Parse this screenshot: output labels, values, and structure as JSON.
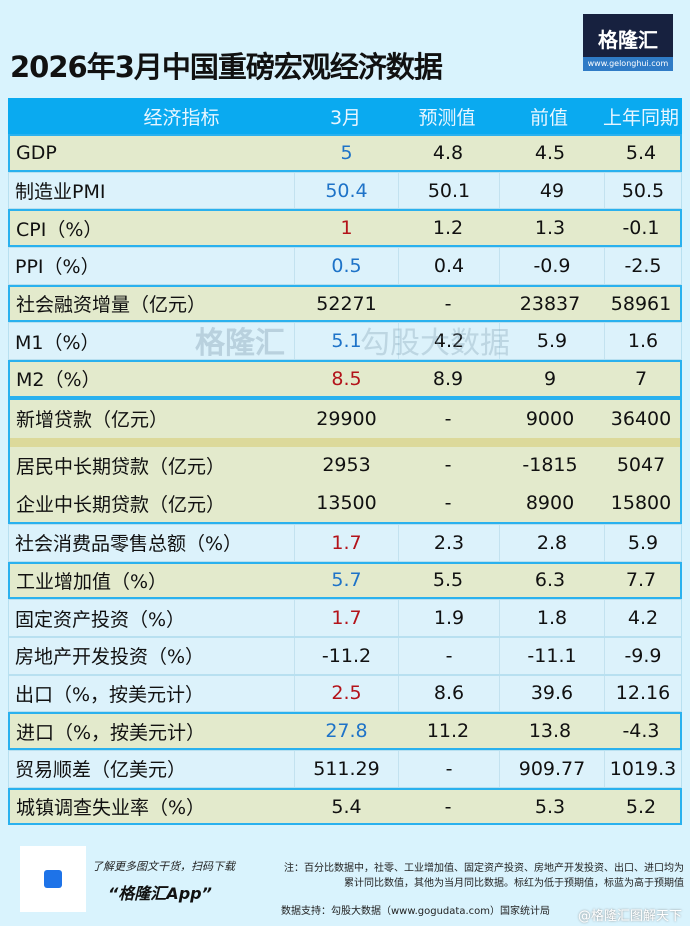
{
  "title": "2026年3月中国重磅宏观经济数据",
  "logo": {
    "name": "格隆汇",
    "url": "www.gelonghui.com"
  },
  "headers": [
    "经济指标",
    "3月",
    "预测值",
    "前值",
    "上年同期"
  ],
  "rows": [
    {
      "name": "GDP",
      "v": [
        "5",
        "4.8",
        "4.5",
        "5.4"
      ],
      "color": "blue",
      "style": "g"
    },
    {
      "name": "制造业PMI",
      "v": [
        "50.4",
        "50.1",
        "49",
        "50.5"
      ],
      "color": "blue",
      "style": "w"
    },
    {
      "name": "CPI（%）",
      "v": [
        "1",
        "1.2",
        "1.3",
        "-0.1"
      ],
      "color": "red",
      "style": "g"
    },
    {
      "name": "PPI（%）",
      "v": [
        "0.5",
        "0.4",
        "-0.9",
        "-2.5"
      ],
      "color": "blue",
      "style": "w"
    },
    {
      "name": "社会融资增量（亿元）",
      "v": [
        "52271",
        "-",
        "23837",
        "58961"
      ],
      "color": "black",
      "style": "g"
    },
    {
      "name": "M1（%）",
      "v": [
        "5.1",
        "4.2",
        "5.9",
        "1.6"
      ],
      "color": "blue",
      "style": "w"
    },
    {
      "name": "M2（%）",
      "v": [
        "8.5",
        "8.9",
        "9",
        "7"
      ],
      "color": "red",
      "style": "g"
    }
  ],
  "loans": [
    {
      "name": "新增贷款（亿元）",
      "v": [
        "29900",
        "-",
        "9000",
        "36400"
      ]
    },
    {
      "name": "居民中长期贷款（亿元）",
      "v": [
        "2953",
        "-",
        "-1815",
        "5047"
      ]
    },
    {
      "name": "企业中长期贷款（亿元）",
      "v": [
        "13500",
        "-",
        "8900",
        "15800"
      ]
    }
  ],
  "rows2": [
    {
      "name": "社会消费品零售总额（%）",
      "v": [
        "1.7",
        "2.3",
        "2.8",
        "5.9"
      ],
      "color": "red",
      "style": "w"
    },
    {
      "name": "工业增加值（%）",
      "v": [
        "5.7",
        "5.5",
        "6.3",
        "7.7"
      ],
      "color": "blue",
      "style": "g"
    },
    {
      "name": "固定资产投资（%）",
      "v": [
        "1.7",
        "1.9",
        "1.8",
        "4.2"
      ],
      "color": "red",
      "style": "w"
    },
    {
      "name": "房地产开发投资（%）",
      "v": [
        "-11.2",
        "-",
        "-11.1",
        "-9.9"
      ],
      "color": "black",
      "style": "w"
    },
    {
      "name": "出口（%，按美元计）",
      "v": [
        "2.5",
        "8.6",
        "39.6",
        "12.16"
      ],
      "color": "red",
      "style": "w"
    },
    {
      "name": "进口（%，按美元计）",
      "v": [
        "27.8",
        "11.2",
        "13.8",
        "-4.3"
      ],
      "color": "blue",
      "style": "g"
    },
    {
      "name": "贸易顺差（亿美元）",
      "v": [
        "511.29",
        "-",
        "909.77",
        "1019.3"
      ],
      "color": "black",
      "style": "w"
    },
    {
      "name": "城镇调查失业率（%）",
      "v": [
        "5.4",
        "-",
        "5.3",
        "5.2"
      ],
      "color": "black",
      "style": "g"
    }
  ],
  "watermark": {
    "left": "格隆汇",
    "right": "勾股大数据"
  },
  "footer": {
    "promo": "了解更多图文干货，扫码下载",
    "app": "“格隆汇App”",
    "note1": "注：百分比数据中，社零、工业增加值、固定资产投资、房地产开发投资、出口、进口均为",
    "note2": "累计同比数值，其他为当月同比数据。标红为低于预期值，标蓝为高于预期值",
    "source": "数据支持：勾股大数据（www.gogudata.com）国家统计局",
    "weibo": "@格隆汇图解天下"
  }
}
